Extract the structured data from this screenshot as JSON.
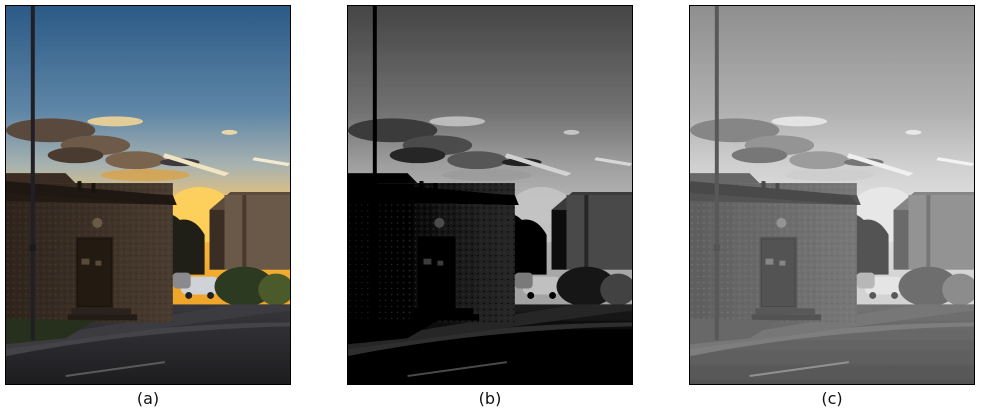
{
  "figure": {
    "panels": [
      {
        "id": "a",
        "caption": "(a)",
        "mode": "color"
      },
      {
        "id": "b",
        "caption": "(b)",
        "mode": "grayscale-dark"
      },
      {
        "id": "c",
        "caption": "(c)",
        "mode": "grayscale-bright"
      }
    ]
  },
  "colors": {
    "sky_top": "#2c5c86",
    "sky_mid": "#8fa6b4",
    "sunset": "#f3b63a",
    "building": "#3a3026",
    "road": "#2a2a2c"
  }
}
